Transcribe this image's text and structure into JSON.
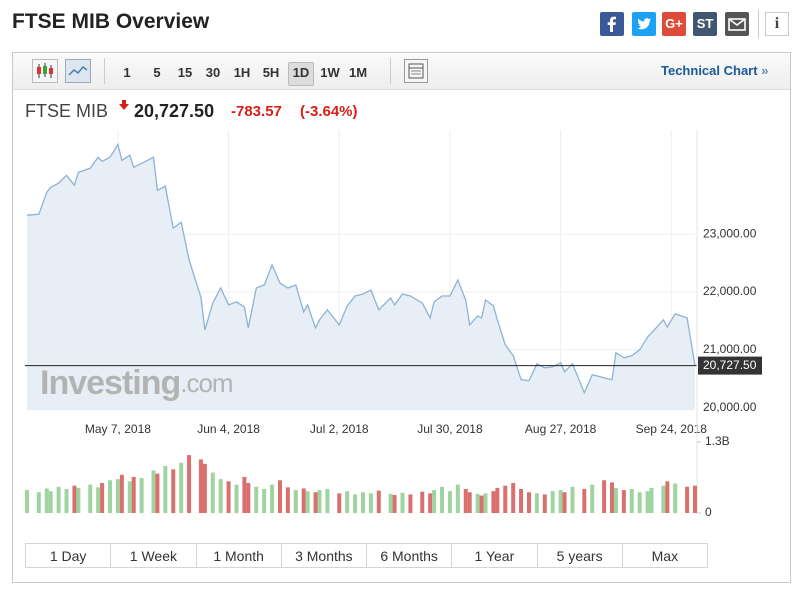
{
  "header": {
    "title": "FTSE MIB Overview",
    "share_labels": {
      "google_plus": "G+",
      "stocktwits": "ST"
    },
    "info": "i"
  },
  "toolbar": {
    "intervals": [
      "1",
      "5",
      "15",
      "30",
      "1H",
      "5H",
      "1D",
      "1W",
      "1M"
    ],
    "active_interval": "1D",
    "technical_link": "Technical Chart",
    "technical_arrow": "»"
  },
  "quote": {
    "name": "FTSE MIB",
    "price": "20,727.50",
    "change": "-783.57",
    "change_percent": "(-3.64%)"
  },
  "watermark": [
    "Investing",
    ".com"
  ],
  "ranges": [
    "1 Day",
    "1 Week",
    "1 Month",
    "3 Months",
    "6 Months",
    "1 Year",
    "5 years",
    "Max"
  ],
  "chart_data": {
    "type": "line",
    "color": "#8eb2d6",
    "fill_color": "#e7eef5",
    "grid": true,
    "x": [
      "2018-04-14",
      "2018-04-17",
      "2018-04-19",
      "2018-04-20",
      "2018-04-22",
      "2018-04-24",
      "2018-04-26",
      "2018-04-27",
      "2018-04-30",
      "2018-05-02",
      "2018-05-03",
      "2018-05-05",
      "2018-05-07",
      "2018-05-08",
      "2018-05-10",
      "2018-05-11",
      "2018-05-13",
      "2018-05-16",
      "2018-05-17",
      "2018-05-19",
      "2018-05-21",
      "2018-05-23",
      "2018-05-25",
      "2018-05-28",
      "2018-05-29",
      "2018-05-31",
      "2018-06-02",
      "2018-06-04",
      "2018-06-06",
      "2018-06-08",
      "2018-06-09",
      "2018-06-11",
      "2018-06-13",
      "2018-06-15",
      "2018-06-17",
      "2018-06-19",
      "2018-06-21",
      "2018-06-23",
      "2018-06-24",
      "2018-06-26",
      "2018-06-27",
      "2018-06-29",
      "2018-07-02",
      "2018-07-04",
      "2018-07-06",
      "2018-07-08",
      "2018-07-10",
      "2018-07-12",
      "2018-07-15",
      "2018-07-16",
      "2018-07-18",
      "2018-07-20",
      "2018-07-23",
      "2018-07-25",
      "2018-07-26",
      "2018-07-28",
      "2018-07-30",
      "2018-08-01",
      "2018-08-03",
      "2018-08-04",
      "2018-08-06",
      "2018-08-07",
      "2018-08-08",
      "2018-08-10",
      "2018-08-11",
      "2018-08-13",
      "2018-08-15",
      "2018-08-17",
      "2018-08-19",
      "2018-08-21",
      "2018-08-23",
      "2018-08-25",
      "2018-08-27",
      "2018-08-28",
      "2018-08-30",
      "2018-09-02",
      "2018-09-04",
      "2018-09-07",
      "2018-09-09",
      "2018-09-10",
      "2018-09-12",
      "2018-09-14",
      "2018-09-16",
      "2018-09-18",
      "2018-09-19",
      "2018-09-22",
      "2018-09-23",
      "2018-09-25",
      "2018-09-28",
      "2018-09-30"
    ],
    "values": [
      23328,
      23345,
      23724,
      23810,
      23880,
      24017,
      23845,
      24070,
      24138,
      24328,
      24259,
      24328,
      24550,
      24276,
      24362,
      24155,
      24224,
      24328,
      23759,
      23828,
      23103,
      23207,
      22552,
      21914,
      21345,
      21810,
      22069,
      21776,
      21828,
      21741,
      21379,
      22069,
      22121,
      22466,
      22155,
      22069,
      22121,
      21655,
      21776,
      21379,
      21517,
      21690,
      21431,
      21759,
      21931,
      21966,
      22034,
      21690,
      21897,
      21776,
      21966,
      21931,
      21810,
      21552,
      21828,
      21931,
      21931,
      22207,
      21862,
      21431,
      21586,
      21552,
      21862,
      21759,
      21517,
      21086,
      20897,
      20483,
      20466,
      20759,
      20690,
      20707,
      20776,
      20621,
      20759,
      20259,
      20569,
      20517,
      20483,
      20948,
      20862,
      20897,
      21000,
      21224,
      21293,
      21517,
      21397,
      21621,
      21552,
      20727.5
    ],
    "xlim": [
      "2018-04-14",
      "2018-09-30"
    ],
    "xticks": [
      {
        "value": "2018-05-07",
        "label": "May 7, 2018"
      },
      {
        "value": "2018-06-04",
        "label": "Jun 4, 2018"
      },
      {
        "value": "2018-07-02",
        "label": "Jul 2, 2018"
      },
      {
        "value": "2018-07-30",
        "label": "Jul 30, 2018"
      },
      {
        "value": "2018-08-27",
        "label": "Aug 27, 2018"
      },
      {
        "value": "2018-09-24",
        "label": "Sep 24, 2018"
      }
    ],
    "ylim": [
      19960,
      24800
    ],
    "yticks": [
      {
        "value": 20000,
        "label": "20,000.00"
      },
      {
        "value": 21000,
        "label": "21,000.00"
      },
      {
        "value": 22000,
        "label": "22,000.00"
      },
      {
        "value": 23000,
        "label": "23,000.00"
      }
    ],
    "volume": {
      "type": "bar",
      "up_color": "#9fd3a0",
      "down_color": "#d9706e",
      "ylim": [
        0,
        1.3
      ],
      "yticks": [
        0,
        {
          "value": 1.3,
          "label": "1.3B"
        }
      ],
      "values": [
        0.42,
        0.38,
        0.45,
        0.4,
        0.48,
        0.44,
        0.5,
        0.46,
        0.52,
        0.47,
        0.55,
        0.6,
        0.62,
        0.7,
        0.58,
        0.66,
        0.64,
        0.78,
        0.72,
        0.86,
        0.8,
        0.92,
        1.06,
        0.98,
        0.9,
        0.74,
        0.62,
        0.58,
        0.52,
        0.66,
        0.55,
        0.48,
        0.44,
        0.52,
        0.6,
        0.47,
        0.42,
        0.45,
        0.4,
        0.38,
        0.42,
        0.44,
        0.36,
        0.4,
        0.34,
        0.38,
        0.36,
        0.41,
        0.35,
        0.33,
        0.37,
        0.34,
        0.39,
        0.36,
        0.42,
        0.48,
        0.4,
        0.52,
        0.44,
        0.38,
        0.35,
        0.32,
        0.36,
        0.4,
        0.46,
        0.5,
        0.55,
        0.44,
        0.38,
        0.36,
        0.34,
        0.4,
        0.42,
        0.38,
        0.48,
        0.44,
        0.52,
        0.6,
        0.56,
        0.46,
        0.42,
        0.44,
        0.38,
        0.4,
        0.46,
        0.5,
        0.58,
        0.54,
        0.48,
        0.5
      ]
    }
  }
}
